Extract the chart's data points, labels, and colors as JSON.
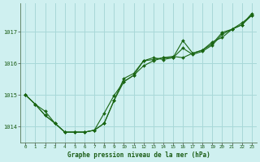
{
  "title": "Graphe pression niveau de la mer (hPa)",
  "background_color": "#cff0f0",
  "line_color": "#1a6614",
  "grid_color": "#a8d8d8",
  "xlim": [
    -0.5,
    23.5
  ],
  "ylim": [
    1013.5,
    1017.9
  ],
  "yticks": [
    1014,
    1015,
    1016,
    1017
  ],
  "xticks": [
    0,
    1,
    2,
    3,
    4,
    5,
    6,
    7,
    8,
    9,
    10,
    11,
    12,
    13,
    14,
    15,
    16,
    17,
    18,
    19,
    20,
    21,
    22,
    23
  ],
  "xlabels": [
    "0",
    "1",
    "2",
    "3",
    "4",
    "5",
    "6",
    "7",
    "8",
    "9",
    "10",
    "11",
    "12",
    "13",
    "14",
    "15",
    "16",
    "17",
    "18",
    "19",
    "20",
    "21",
    "22",
    "23"
  ],
  "series1": {
    "x": [
      0,
      1,
      2,
      3,
      4,
      5,
      6,
      7,
      8,
      9,
      10,
      11,
      12,
      13,
      14,
      15,
      16,
      17,
      18,
      19,
      20,
      21,
      22,
      23
    ],
    "y": [
      1015.0,
      1014.7,
      1014.35,
      1014.1,
      1013.82,
      1013.82,
      1013.82,
      1013.88,
      1014.1,
      1014.82,
      1015.52,
      1015.68,
      1016.08,
      1016.18,
      1016.12,
      1016.18,
      1016.48,
      1016.28,
      1016.38,
      1016.58,
      1016.92,
      1017.08,
      1017.22,
      1017.52
    ]
  },
  "series2": {
    "x": [
      0,
      1,
      2,
      3,
      4,
      5,
      6,
      7,
      8,
      9,
      10,
      11,
      12,
      13,
      14,
      15,
      16,
      17,
      18,
      19,
      20,
      21,
      22,
      23
    ],
    "y": [
      1015.0,
      1014.7,
      1014.35,
      1014.1,
      1013.82,
      1013.82,
      1013.82,
      1013.88,
      1014.42,
      1014.98,
      1015.42,
      1015.62,
      1016.08,
      1016.12,
      1016.18,
      1016.22,
      1016.18,
      1016.32,
      1016.42,
      1016.62,
      1016.98,
      1017.08,
      1017.28,
      1017.52
    ]
  },
  "series3": {
    "x": [
      0,
      1,
      2,
      3,
      4,
      5,
      6,
      7,
      8,
      9,
      10,
      11,
      12,
      13,
      14,
      15,
      16,
      17,
      18,
      19,
      20,
      21,
      22,
      23
    ],
    "y": [
      1015.0,
      1014.7,
      1014.48,
      1014.1,
      1013.82,
      1013.82,
      1013.82,
      1013.88,
      1014.1,
      1014.82,
      1015.42,
      1015.62,
      1015.92,
      1016.08,
      1016.18,
      1016.18,
      1016.72,
      1016.32,
      1016.42,
      1016.68,
      1016.82,
      1017.08,
      1017.22,
      1017.58
    ]
  }
}
